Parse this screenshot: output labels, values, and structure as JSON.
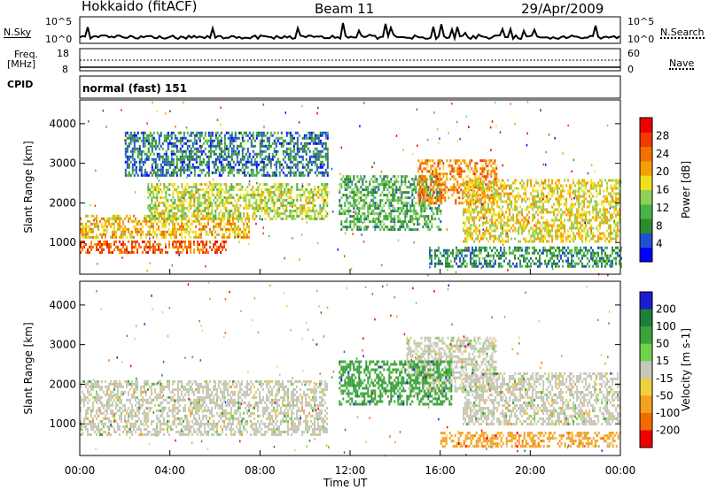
{
  "header": {
    "station": "Hokkaido (fitACF)",
    "beam": "Beam 11",
    "date": "29/Apr/2009"
  },
  "strip": {
    "nsky_label": "N.Sky",
    "nsky_top": "10^5",
    "nsky_bottom": "10^0",
    "nsearch_top": "10^5",
    "nsearch_bottom": "10^0",
    "nsearch_label": "N.Search",
    "freq_label_1": "Freq.",
    "freq_label_2": "[MHz]",
    "freq_top": "18",
    "freq_bottom": "8",
    "nave_top": "60",
    "nave_bottom": "0",
    "nave_label": "Nave",
    "cpid_label": "CPID",
    "cpid_value": "normal (fast) 151"
  },
  "colors": {
    "power": [
      "#0000ff",
      "#2050d0",
      "#2d8a2d",
      "#49b449",
      "#8fd058",
      "#f0e020",
      "#f5a000",
      "#f57000",
      "#f03a00",
      "#ee0000"
    ],
    "velocity": [
      "#1c1cd0",
      "#1f7f3a",
      "#3ca33c",
      "#6fd24a",
      "#c8c8b8",
      "#f0d040",
      "#f5a020",
      "#f56a00",
      "#ee0000"
    ]
  },
  "chart_data": [
    {
      "type": "heatmap",
      "name": "power",
      "ylabel": "Slant Range [km]",
      "xlabel": "Time UT",
      "xlim": [
        0,
        24
      ],
      "ylim": [
        200,
        4600
      ],
      "x_ticks": [
        "00:00",
        "04:00",
        "08:00",
        "12:00",
        "16:00",
        "20:00",
        "00:00"
      ],
      "y_ticks": [
        1000,
        2000,
        3000,
        4000
      ],
      "colorbar": {
        "label": "Power [dB]",
        "ticks": [
          4,
          8,
          12,
          16,
          20,
          24,
          28
        ],
        "range": [
          0,
          32
        ]
      },
      "features": [
        {
          "t_start": 0.0,
          "t_end": 6.5,
          "r_low": 750,
          "r_high": 1050,
          "power": 26
        },
        {
          "t_start": 0.0,
          "t_end": 7.5,
          "r_low": 1100,
          "r_high": 1700,
          "power": 20
        },
        {
          "t_start": 3.0,
          "t_end": 11.0,
          "r_low": 1600,
          "r_high": 2500,
          "power": 16
        },
        {
          "t_start": 11.5,
          "t_end": 16.0,
          "r_low": 1300,
          "r_high": 2700,
          "power": 10
        },
        {
          "t_start": 15.0,
          "t_end": 18.5,
          "r_low": 2000,
          "r_high": 3100,
          "power": 24
        },
        {
          "t_start": 17.0,
          "t_end": 24.0,
          "r_low": 1000,
          "r_high": 2600,
          "power": 18
        },
        {
          "t_start": 15.5,
          "t_end": 24.0,
          "r_low": 400,
          "r_high": 900,
          "power": 8
        },
        {
          "t_start": 2.0,
          "t_end": 11.0,
          "r_low": 2700,
          "r_high": 3800,
          "power": 6
        }
      ]
    },
    {
      "type": "heatmap",
      "name": "velocity",
      "ylabel": "Slant Range [km]",
      "xlabel": "Time UT",
      "xlim": [
        0,
        24
      ],
      "ylim": [
        200,
        4600
      ],
      "x_ticks": [
        "00:00",
        "04:00",
        "08:00",
        "12:00",
        "16:00",
        "20:00",
        "00:00"
      ],
      "y_ticks": [
        1000,
        2000,
        3000,
        4000
      ],
      "colorbar": {
        "label": "Velocity [m s-1]",
        "ticks": [
          200,
          100,
          50,
          15,
          -15,
          -50,
          -100,
          -200
        ]
      },
      "features": [
        {
          "t_start": 0.0,
          "t_end": 11.0,
          "r_low": 700,
          "r_high": 2100,
          "velocity": 0
        },
        {
          "t_start": 14.5,
          "t_end": 18.5,
          "r_low": 1800,
          "r_high": 3200,
          "velocity": 0
        },
        {
          "t_start": 17.0,
          "t_end": 24.0,
          "r_low": 1000,
          "r_high": 2300,
          "velocity": 0
        },
        {
          "t_start": 11.5,
          "t_end": 16.5,
          "r_low": 1500,
          "r_high": 2600,
          "velocity": 30
        },
        {
          "t_start": 16.0,
          "t_end": 24.0,
          "r_low": 400,
          "r_high": 800,
          "velocity": -40
        }
      ]
    }
  ]
}
